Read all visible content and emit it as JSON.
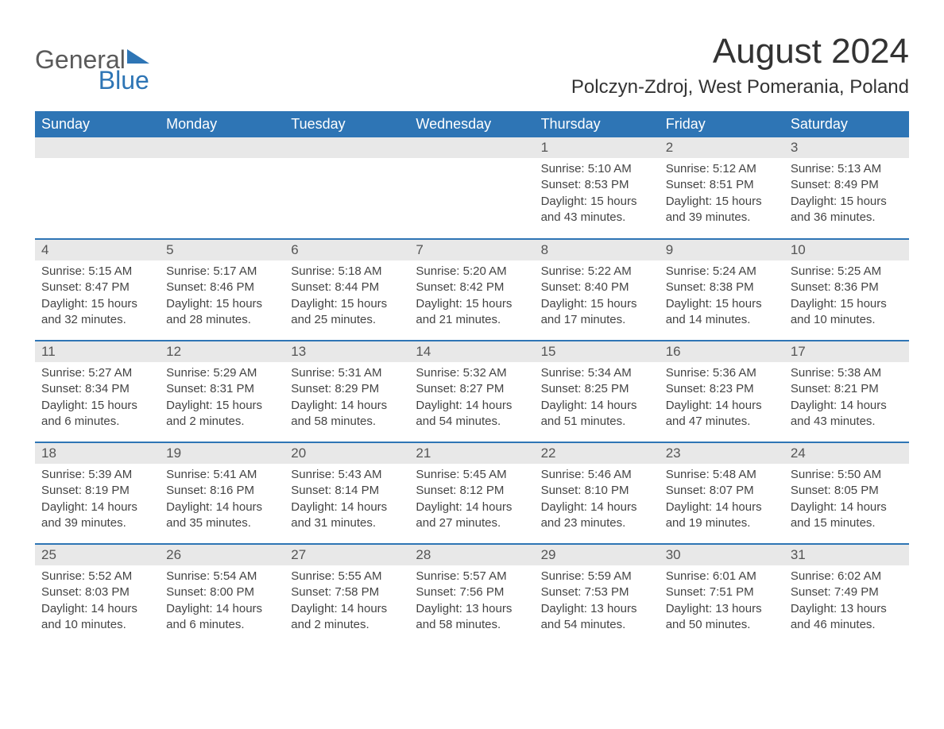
{
  "logo": {
    "general": "General",
    "blue": "Blue",
    "tri_color": "#2e75b5"
  },
  "title": "August 2024",
  "location": "Polczyn-Zdroj, West Pomerania, Poland",
  "colors": {
    "header_bg": "#2e75b5",
    "header_text": "#ffffff",
    "daynum_bg": "#e8e8e8",
    "row_rule": "#2e75b5",
    "body_text": "#444444"
  },
  "weekdays": [
    "Sunday",
    "Monday",
    "Tuesday",
    "Wednesday",
    "Thursday",
    "Friday",
    "Saturday"
  ],
  "weeks": [
    [
      null,
      null,
      null,
      null,
      {
        "n": "1",
        "sunrise": "Sunrise: 5:10 AM",
        "sunset": "Sunset: 8:53 PM",
        "daylight": "Daylight: 15 hours and 43 minutes."
      },
      {
        "n": "2",
        "sunrise": "Sunrise: 5:12 AM",
        "sunset": "Sunset: 8:51 PM",
        "daylight": "Daylight: 15 hours and 39 minutes."
      },
      {
        "n": "3",
        "sunrise": "Sunrise: 5:13 AM",
        "sunset": "Sunset: 8:49 PM",
        "daylight": "Daylight: 15 hours and 36 minutes."
      }
    ],
    [
      {
        "n": "4",
        "sunrise": "Sunrise: 5:15 AM",
        "sunset": "Sunset: 8:47 PM",
        "daylight": "Daylight: 15 hours and 32 minutes."
      },
      {
        "n": "5",
        "sunrise": "Sunrise: 5:17 AM",
        "sunset": "Sunset: 8:46 PM",
        "daylight": "Daylight: 15 hours and 28 minutes."
      },
      {
        "n": "6",
        "sunrise": "Sunrise: 5:18 AM",
        "sunset": "Sunset: 8:44 PM",
        "daylight": "Daylight: 15 hours and 25 minutes."
      },
      {
        "n": "7",
        "sunrise": "Sunrise: 5:20 AM",
        "sunset": "Sunset: 8:42 PM",
        "daylight": "Daylight: 15 hours and 21 minutes."
      },
      {
        "n": "8",
        "sunrise": "Sunrise: 5:22 AM",
        "sunset": "Sunset: 8:40 PM",
        "daylight": "Daylight: 15 hours and 17 minutes."
      },
      {
        "n": "9",
        "sunrise": "Sunrise: 5:24 AM",
        "sunset": "Sunset: 8:38 PM",
        "daylight": "Daylight: 15 hours and 14 minutes."
      },
      {
        "n": "10",
        "sunrise": "Sunrise: 5:25 AM",
        "sunset": "Sunset: 8:36 PM",
        "daylight": "Daylight: 15 hours and 10 minutes."
      }
    ],
    [
      {
        "n": "11",
        "sunrise": "Sunrise: 5:27 AM",
        "sunset": "Sunset: 8:34 PM",
        "daylight": "Daylight: 15 hours and 6 minutes."
      },
      {
        "n": "12",
        "sunrise": "Sunrise: 5:29 AM",
        "sunset": "Sunset: 8:31 PM",
        "daylight": "Daylight: 15 hours and 2 minutes."
      },
      {
        "n": "13",
        "sunrise": "Sunrise: 5:31 AM",
        "sunset": "Sunset: 8:29 PM",
        "daylight": "Daylight: 14 hours and 58 minutes."
      },
      {
        "n": "14",
        "sunrise": "Sunrise: 5:32 AM",
        "sunset": "Sunset: 8:27 PM",
        "daylight": "Daylight: 14 hours and 54 minutes."
      },
      {
        "n": "15",
        "sunrise": "Sunrise: 5:34 AM",
        "sunset": "Sunset: 8:25 PM",
        "daylight": "Daylight: 14 hours and 51 minutes."
      },
      {
        "n": "16",
        "sunrise": "Sunrise: 5:36 AM",
        "sunset": "Sunset: 8:23 PM",
        "daylight": "Daylight: 14 hours and 47 minutes."
      },
      {
        "n": "17",
        "sunrise": "Sunrise: 5:38 AM",
        "sunset": "Sunset: 8:21 PM",
        "daylight": "Daylight: 14 hours and 43 minutes."
      }
    ],
    [
      {
        "n": "18",
        "sunrise": "Sunrise: 5:39 AM",
        "sunset": "Sunset: 8:19 PM",
        "daylight": "Daylight: 14 hours and 39 minutes."
      },
      {
        "n": "19",
        "sunrise": "Sunrise: 5:41 AM",
        "sunset": "Sunset: 8:16 PM",
        "daylight": "Daylight: 14 hours and 35 minutes."
      },
      {
        "n": "20",
        "sunrise": "Sunrise: 5:43 AM",
        "sunset": "Sunset: 8:14 PM",
        "daylight": "Daylight: 14 hours and 31 minutes."
      },
      {
        "n": "21",
        "sunrise": "Sunrise: 5:45 AM",
        "sunset": "Sunset: 8:12 PM",
        "daylight": "Daylight: 14 hours and 27 minutes."
      },
      {
        "n": "22",
        "sunrise": "Sunrise: 5:46 AM",
        "sunset": "Sunset: 8:10 PM",
        "daylight": "Daylight: 14 hours and 23 minutes."
      },
      {
        "n": "23",
        "sunrise": "Sunrise: 5:48 AM",
        "sunset": "Sunset: 8:07 PM",
        "daylight": "Daylight: 14 hours and 19 minutes."
      },
      {
        "n": "24",
        "sunrise": "Sunrise: 5:50 AM",
        "sunset": "Sunset: 8:05 PM",
        "daylight": "Daylight: 14 hours and 15 minutes."
      }
    ],
    [
      {
        "n": "25",
        "sunrise": "Sunrise: 5:52 AM",
        "sunset": "Sunset: 8:03 PM",
        "daylight": "Daylight: 14 hours and 10 minutes."
      },
      {
        "n": "26",
        "sunrise": "Sunrise: 5:54 AM",
        "sunset": "Sunset: 8:00 PM",
        "daylight": "Daylight: 14 hours and 6 minutes."
      },
      {
        "n": "27",
        "sunrise": "Sunrise: 5:55 AM",
        "sunset": "Sunset: 7:58 PM",
        "daylight": "Daylight: 14 hours and 2 minutes."
      },
      {
        "n": "28",
        "sunrise": "Sunrise: 5:57 AM",
        "sunset": "Sunset: 7:56 PM",
        "daylight": "Daylight: 13 hours and 58 minutes."
      },
      {
        "n": "29",
        "sunrise": "Sunrise: 5:59 AM",
        "sunset": "Sunset: 7:53 PM",
        "daylight": "Daylight: 13 hours and 54 minutes."
      },
      {
        "n": "30",
        "sunrise": "Sunrise: 6:01 AM",
        "sunset": "Sunset: 7:51 PM",
        "daylight": "Daylight: 13 hours and 50 minutes."
      },
      {
        "n": "31",
        "sunrise": "Sunrise: 6:02 AM",
        "sunset": "Sunset: 7:49 PM",
        "daylight": "Daylight: 13 hours and 46 minutes."
      }
    ]
  ]
}
